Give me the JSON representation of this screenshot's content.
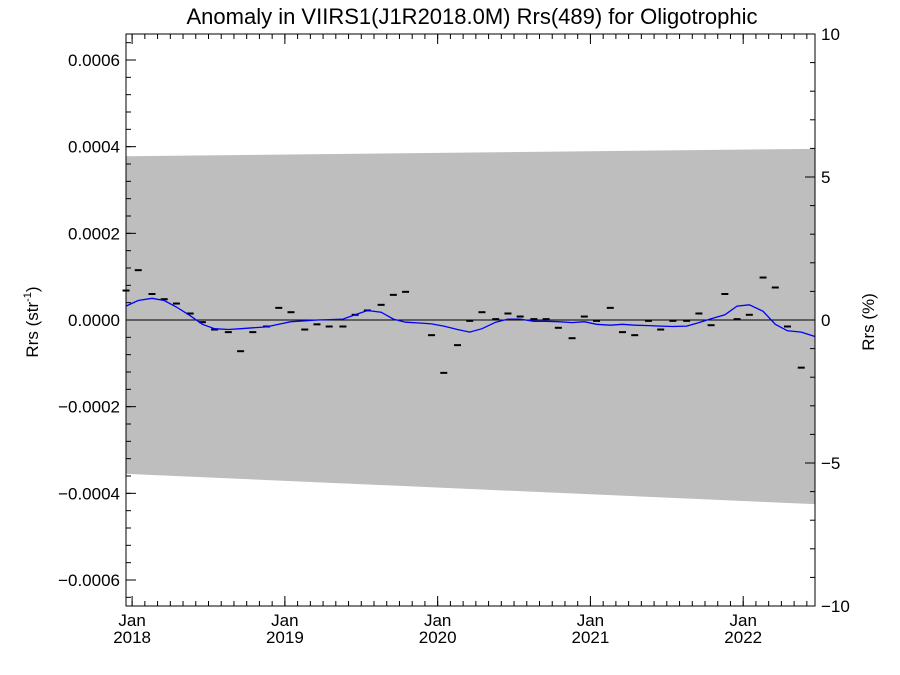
{
  "chart_data": {
    "type": "scatter",
    "title": "Anomaly in VIIRS1(J1R2018.0M) Rrs(489) for Oligotrophic",
    "ylabel_left": "Rrs (str",
    "ylabel_left_superscript": "-1",
    "ylabel_left_suffix": ")",
    "ylabel_right": "Rrs (%)",
    "xlim": [
      2017.96,
      2022.47
    ],
    "ylim": [
      -0.00066,
      0.00066
    ],
    "ylim_right": [
      -10,
      10
    ],
    "left_ticks": [
      {
        "value": 0.0006,
        "label": "0.0006"
      },
      {
        "value": 0.0004,
        "label": "0.0004"
      },
      {
        "value": 0.0002,
        "label": "0.0002"
      },
      {
        "value": 0.0,
        "label": "0.0000"
      },
      {
        "value": -0.0002,
        "label": "−0.0002"
      },
      {
        "value": -0.0004,
        "label": "−0.0004"
      },
      {
        "value": -0.0006,
        "label": "−0.0006"
      }
    ],
    "right_ticks": [
      {
        "value": 10,
        "label": "10"
      },
      {
        "value": 5,
        "label": "5"
      },
      {
        "value": 0,
        "label": "0"
      },
      {
        "value": -5,
        "label": "−5"
      },
      {
        "value": -10,
        "label": "−10"
      }
    ],
    "x_ticks": [
      {
        "value": 2018.0,
        "month": "Jan",
        "year": "2018"
      },
      {
        "value": 2019.0,
        "month": "Jan",
        "year": "2019"
      },
      {
        "value": 2020.0,
        "month": "Jan",
        "year": "2020"
      },
      {
        "value": 2021.0,
        "month": "Jan",
        "year": "2021"
      },
      {
        "value": 2022.0,
        "month": "Jan",
        "year": "2022"
      }
    ],
    "uncertainty_band": {
      "x": [
        2017.96,
        2022.47
      ],
      "upper": [
        0.000378,
        0.000395
      ],
      "lower": [
        -0.000355,
        -0.000425
      ],
      "color": "#bebebe"
    },
    "zero_line_color": "#000000",
    "series": [
      {
        "kind": "markers",
        "color": "#000000",
        "points": [
          [
            2017.96,
            6.8e-05
          ],
          [
            2018.04,
            0.000115
          ],
          [
            2018.13,
            6e-05
          ],
          [
            2018.21,
            4.8e-05
          ],
          [
            2018.29,
            3.8e-05
          ],
          [
            2018.38,
            1.5e-05
          ],
          [
            2018.46,
            -5e-06
          ],
          [
            2018.54,
            -2.2e-05
          ],
          [
            2018.63,
            -2.8e-05
          ],
          [
            2018.71,
            -7.2e-05
          ],
          [
            2018.79,
            -2.8e-05
          ],
          [
            2018.88,
            -1.5e-05
          ],
          [
            2018.96,
            2.8e-05
          ],
          [
            2019.04,
            1.8e-05
          ],
          [
            2019.13,
            -2.2e-05
          ],
          [
            2019.21,
            -1e-05
          ],
          [
            2019.29,
            -1.5e-05
          ],
          [
            2019.38,
            -1.5e-05
          ],
          [
            2019.46,
            1.2e-05
          ],
          [
            2019.54,
            2.2e-05
          ],
          [
            2019.63,
            3.5e-05
          ],
          [
            2019.71,
            5.8e-05
          ],
          [
            2019.79,
            6.5e-05
          ],
          [
            2019.96,
            -3.5e-05
          ],
          [
            2020.04,
            -0.000122
          ],
          [
            2020.13,
            -5.8e-05
          ],
          [
            2020.21,
            -2e-06
          ],
          [
            2020.29,
            1.8e-05
          ],
          [
            2020.38,
            2e-06
          ],
          [
            2020.46,
            1.5e-05
          ],
          [
            2020.54,
            8e-06
          ],
          [
            2020.63,
            2e-06
          ],
          [
            2020.71,
            2e-06
          ],
          [
            2020.79,
            -1.8e-05
          ],
          [
            2020.88,
            -4.2e-05
          ],
          [
            2020.96,
            8e-06
          ],
          [
            2021.04,
            -2e-06
          ],
          [
            2021.13,
            2.8e-05
          ],
          [
            2021.21,
            -2.8e-05
          ],
          [
            2021.29,
            -3.5e-05
          ],
          [
            2021.38,
            -2e-06
          ],
          [
            2021.46,
            -2.2e-05
          ],
          [
            2021.54,
            -2e-06
          ],
          [
            2021.63,
            -2e-06
          ],
          [
            2021.71,
            1.5e-05
          ],
          [
            2021.79,
            -1.2e-05
          ],
          [
            2021.88,
            6e-05
          ],
          [
            2021.96,
            2e-06
          ],
          [
            2022.04,
            1.2e-05
          ],
          [
            2022.13,
            9.8e-05
          ],
          [
            2022.21,
            7.5e-05
          ],
          [
            2022.29,
            -1.5e-05
          ],
          [
            2022.38,
            -0.00011
          ]
        ]
      },
      {
        "kind": "line",
        "color": "#0000ff",
        "points": [
          [
            2017.96,
            3.2e-05
          ],
          [
            2018.04,
            4.5e-05
          ],
          [
            2018.13,
            5e-05
          ],
          [
            2018.21,
            4.5e-05
          ],
          [
            2018.29,
            3e-05
          ],
          [
            2018.38,
            1e-05
          ],
          [
            2018.46,
            -1e-05
          ],
          [
            2018.54,
            -2e-05
          ],
          [
            2018.63,
            -2.2e-05
          ],
          [
            2018.71,
            -2e-05
          ],
          [
            2018.79,
            -1.8e-05
          ],
          [
            2018.88,
            -1.6e-05
          ],
          [
            2018.96,
            -1e-05
          ],
          [
            2019.04,
            -4e-06
          ],
          [
            2019.13,
            -2e-06
          ],
          [
            2019.21,
            0.0
          ],
          [
            2019.29,
            1e-06
          ],
          [
            2019.38,
            2e-06
          ],
          [
            2019.46,
            1.2e-05
          ],
          [
            2019.54,
            2.2e-05
          ],
          [
            2019.63,
            1.8e-05
          ],
          [
            2019.71,
            2e-06
          ],
          [
            2019.79,
            -5e-06
          ],
          [
            2019.88,
            -7e-06
          ],
          [
            2019.96,
            -9e-06
          ],
          [
            2020.04,
            -1.4e-05
          ],
          [
            2020.13,
            -2.2e-05
          ],
          [
            2020.21,
            -2.8e-05
          ],
          [
            2020.29,
            -2e-05
          ],
          [
            2020.38,
            -5e-06
          ],
          [
            2020.46,
            2e-06
          ],
          [
            2020.54,
            2e-06
          ],
          [
            2020.63,
            -3e-06
          ],
          [
            2020.71,
            -3e-06
          ],
          [
            2020.79,
            -4e-06
          ],
          [
            2020.88,
            -6e-06
          ],
          [
            2020.96,
            -4e-06
          ],
          [
            2021.04,
            -1e-05
          ],
          [
            2021.13,
            -1.2e-05
          ],
          [
            2021.21,
            -1e-05
          ],
          [
            2021.29,
            -1.2e-05
          ],
          [
            2021.38,
            -1.3e-05
          ],
          [
            2021.46,
            -1.4e-05
          ],
          [
            2021.54,
            -1.5e-05
          ],
          [
            2021.63,
            -1.4e-05
          ],
          [
            2021.71,
            -6e-06
          ],
          [
            2021.79,
            3e-06
          ],
          [
            2021.88,
            1.2e-05
          ],
          [
            2021.96,
            3.2e-05
          ],
          [
            2022.04,
            3.5e-05
          ],
          [
            2022.13,
            2e-05
          ],
          [
            2022.21,
            -1e-05
          ],
          [
            2022.29,
            -2.5e-05
          ],
          [
            2022.38,
            -2.8e-05
          ],
          [
            2022.47,
            -3.8e-05
          ]
        ]
      }
    ]
  }
}
